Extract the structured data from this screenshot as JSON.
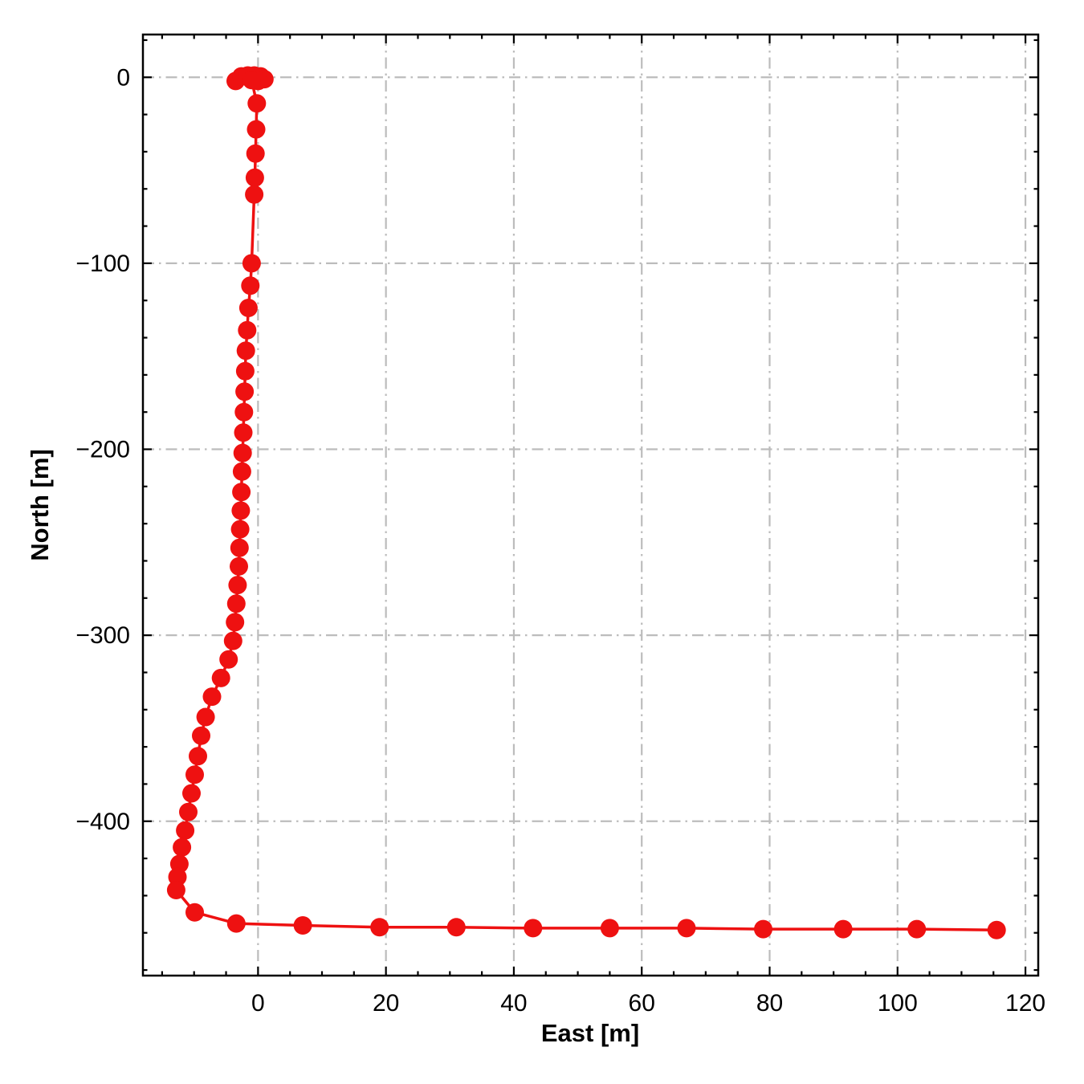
{
  "chart_data": {
    "type": "line",
    "title": "",
    "xlabel": "East [m]",
    "ylabel": "North [m]",
    "xlim": [
      -18,
      122
    ],
    "ylim": [
      -483,
      23
    ],
    "xticks": [
      0,
      20,
      40,
      60,
      80,
      100,
      120
    ],
    "yticks": [
      0,
      -100,
      -200,
      -300,
      -400
    ],
    "x_minor_step": 5,
    "y_minor_step": 20,
    "grid": true,
    "grid_style": "dash-dot",
    "legend": "none",
    "line_color": "#ee1111",
    "marker": "circle",
    "marker_size": 11.5,
    "series": [
      {
        "name": "vehicle-trajectory",
        "points": [
          [
            -3.5,
            -2
          ],
          [
            -2.6,
            0.5
          ],
          [
            -1.6,
            1
          ],
          [
            -0.6,
            1
          ],
          [
            0.4,
            0.5
          ],
          [
            1.0,
            -1
          ],
          [
            0.0,
            -2
          ],
          [
            -1.0,
            -1.5
          ],
          [
            -0.2,
            -14
          ],
          [
            -0.3,
            -28
          ],
          [
            -0.4,
            -41
          ],
          [
            -0.5,
            -54
          ],
          [
            -0.6,
            -63
          ],
          [
            -1.0,
            -100
          ],
          [
            -1.2,
            -112
          ],
          [
            -1.5,
            -124
          ],
          [
            -1.7,
            -136
          ],
          [
            -1.9,
            -147
          ],
          [
            -2.0,
            -158
          ],
          [
            -2.1,
            -169
          ],
          [
            -2.2,
            -180
          ],
          [
            -2.3,
            -191
          ],
          [
            -2.4,
            -202
          ],
          [
            -2.5,
            -212
          ],
          [
            -2.6,
            -223
          ],
          [
            -2.7,
            -233
          ],
          [
            -2.8,
            -243
          ],
          [
            -2.9,
            -253
          ],
          [
            -3.0,
            -263
          ],
          [
            -3.2,
            -273
          ],
          [
            -3.4,
            -283
          ],
          [
            -3.6,
            -293
          ],
          [
            -3.9,
            -303
          ],
          [
            -4.6,
            -313
          ],
          [
            -5.8,
            -323
          ],
          [
            -7.2,
            -333
          ],
          [
            -8.2,
            -344
          ],
          [
            -8.9,
            -354
          ],
          [
            -9.4,
            -365
          ],
          [
            -9.9,
            -375
          ],
          [
            -10.4,
            -385
          ],
          [
            -10.9,
            -395
          ],
          [
            -11.4,
            -405
          ],
          [
            -11.9,
            -414
          ],
          [
            -12.3,
            -423
          ],
          [
            -12.6,
            -430
          ],
          [
            -12.8,
            -437
          ],
          [
            -9.9,
            -449
          ],
          [
            -3.4,
            -455
          ],
          [
            7,
            -456
          ],
          [
            19,
            -457
          ],
          [
            31,
            -457
          ],
          [
            43,
            -457.5
          ],
          [
            55,
            -457.5
          ],
          [
            67,
            -457.5
          ],
          [
            79,
            -458
          ],
          [
            91.5,
            -458
          ],
          [
            103,
            -458
          ],
          [
            115.5,
            -458.5
          ]
        ]
      }
    ]
  }
}
